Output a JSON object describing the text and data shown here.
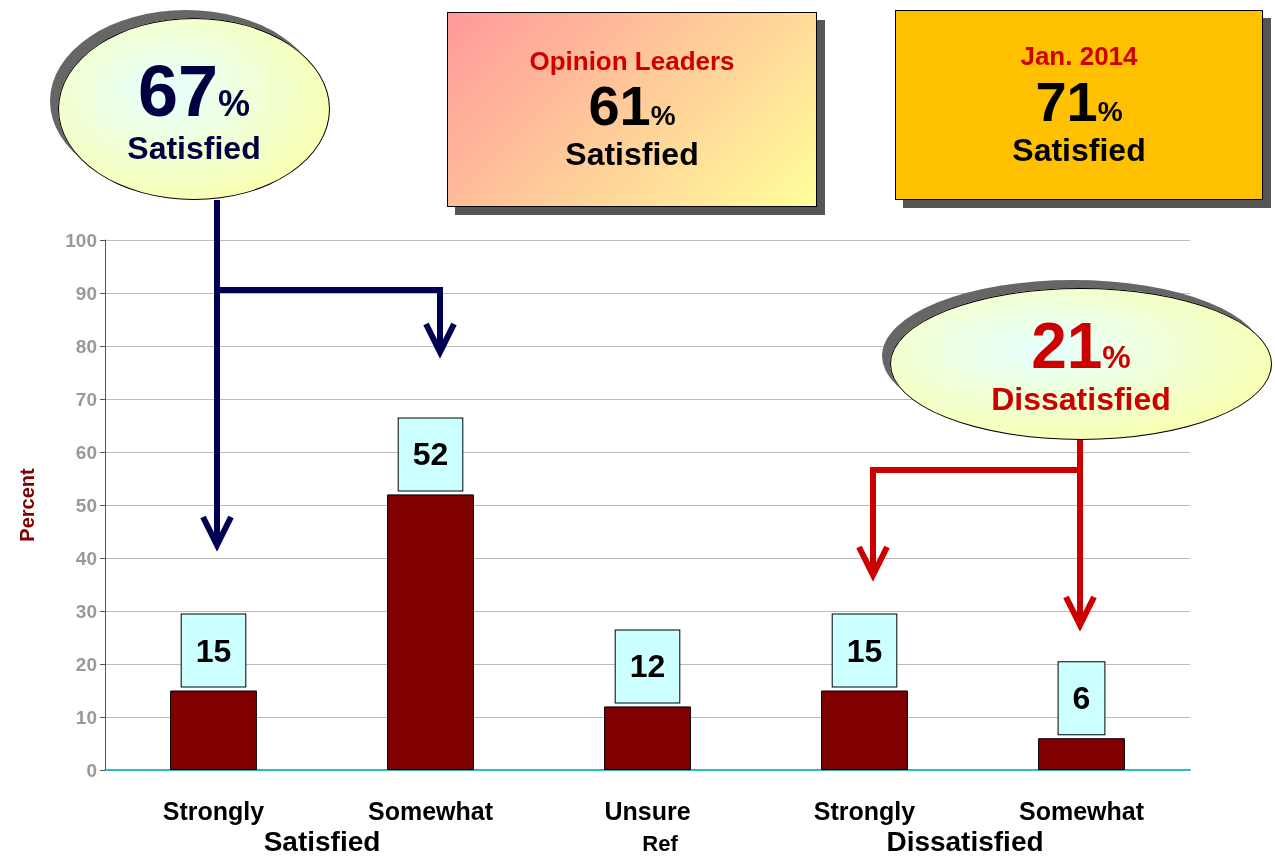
{
  "chart_data": {
    "type": "bar",
    "categories": [
      "Strongly",
      "Somewhat",
      "Unsure",
      "Strongly",
      "Somewhat"
    ],
    "values": [
      15,
      52,
      12,
      15,
      6
    ],
    "color": "#800000",
    "ylabel": "Percent",
    "ylim": [
      0,
      100
    ],
    "yticks": [
      0,
      10,
      20,
      30,
      40,
      50,
      60,
      70,
      80,
      90,
      100
    ],
    "grid": "y",
    "data_labels": true,
    "annotations": [
      "67%\nSatisfied",
      "Opinion Leaders\n61%\nSatisfied",
      "Jan. 2014\n71%\nSatisfied",
      "21%\nDissatisfied",
      "Satisfied",
      "Ref",
      "Dissatisfied"
    ]
  }
}
